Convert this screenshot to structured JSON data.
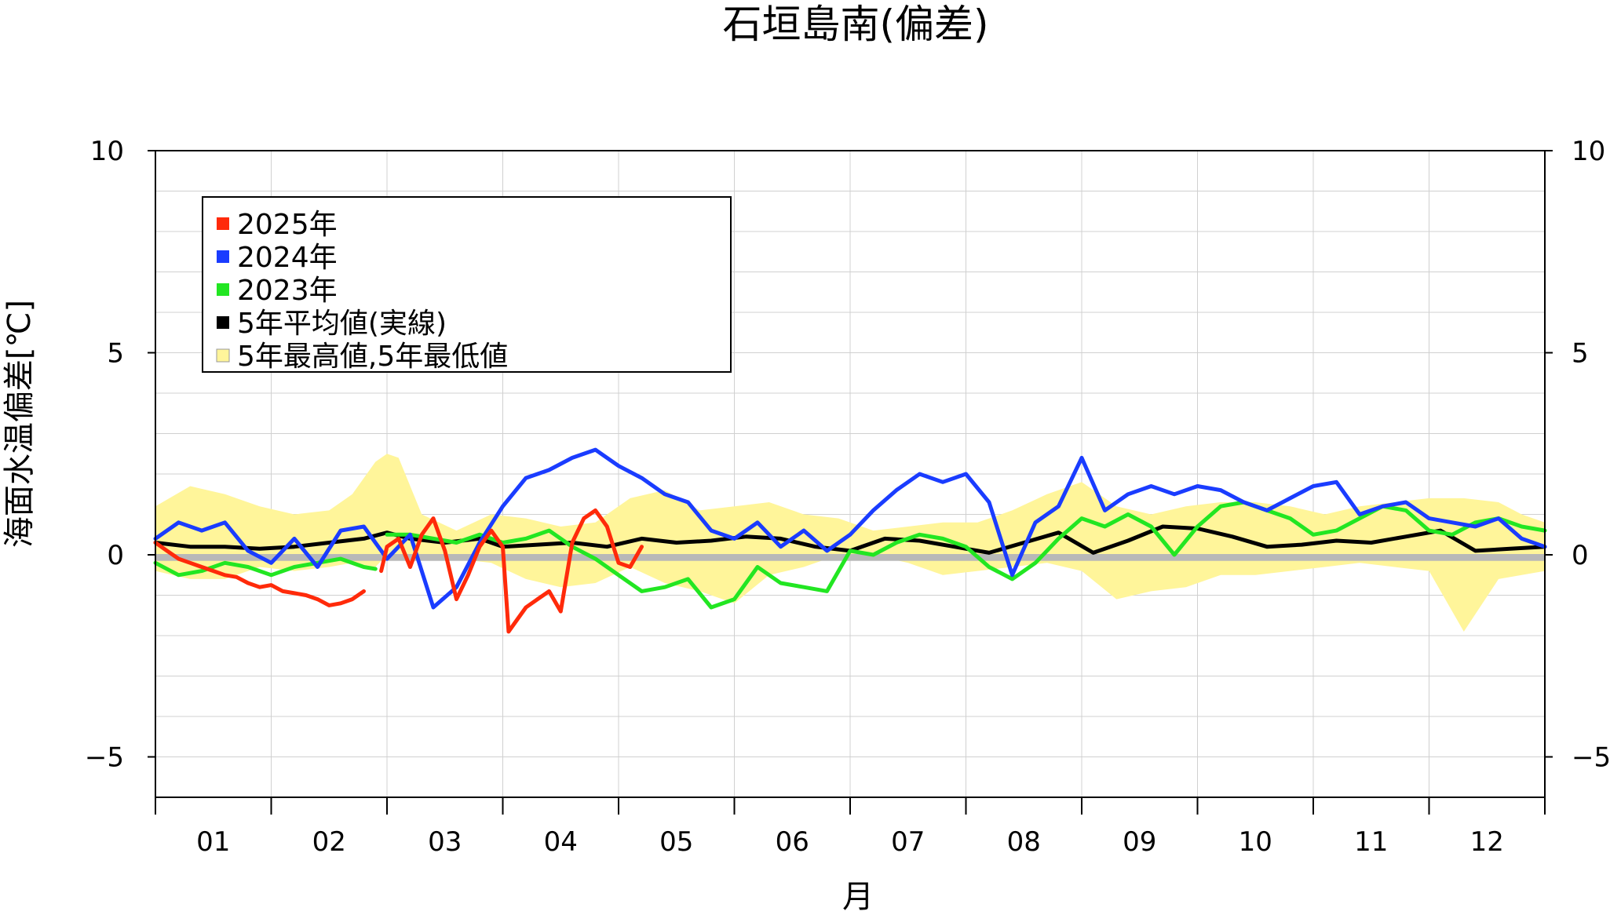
{
  "chart_data": {
    "type": "line",
    "title": "石垣島南(偏差)",
    "xlabel": "月",
    "ylabel": "海面水温偏差[℃]",
    "ylim": [
      -6,
      10
    ],
    "xlim": [
      0,
      12
    ],
    "yticks": [
      10,
      5,
      0,
      -5
    ],
    "ytick_labels": [
      "10",
      "5",
      "0",
      "−5"
    ],
    "categories": [
      "01",
      "02",
      "03",
      "04",
      "05",
      "06",
      "07",
      "08",
      "09",
      "10",
      "11",
      "12"
    ],
    "grid": true,
    "legend_position": "top-left",
    "legend": [
      {
        "label": "2025年",
        "color": "#ff2a0a"
      },
      {
        "label": "2024年",
        "color": "#1a3cff"
      },
      {
        "label": "2023年",
        "color": "#22e622"
      },
      {
        "label": "5年平均値(実線)",
        "color": "#000000"
      },
      {
        "label": "5年最高値,5年最低値",
        "color": "#fff59a"
      }
    ],
    "series": [
      {
        "name": "2025年",
        "color": "#ff2a0a",
        "x": [
          0,
          0.1,
          0.2,
          0.3,
          0.4,
          0.5,
          0.6,
          0.7,
          0.8,
          0.9,
          1.0,
          1.1,
          1.2,
          1.3,
          1.4,
          1.5,
          1.6,
          1.7,
          1.8,
          1.9,
          1.95,
          2.0,
          2.1,
          2.2,
          2.3,
          2.4,
          2.5,
          2.6,
          2.7,
          2.8,
          2.9,
          3.0,
          3.05,
          3.1,
          3.2,
          3.3,
          3.4,
          3.5,
          3.6,
          3.7,
          3.8,
          3.9,
          4.0,
          4.1,
          4.2
        ],
        "y": [
          0.3,
          0.1,
          -0.1,
          -0.2,
          -0.3,
          -0.4,
          -0.5,
          -0.55,
          -0.7,
          -0.8,
          -0.75,
          -0.9,
          -0.95,
          -1.0,
          -1.1,
          -1.25,
          -1.2,
          -1.1,
          -0.9,
          null,
          -0.4,
          0.2,
          0.4,
          -0.3,
          0.5,
          0.9,
          0.1,
          -1.1,
          -0.5,
          0.2,
          0.6,
          0.2,
          -1.9,
          -1.7,
          -1.3,
          -1.1,
          -0.9,
          -1.4,
          0.3,
          0.9,
          1.1,
          0.7,
          -0.2,
          -0.3,
          0.2
        ]
      },
      {
        "name": "2024年",
        "color": "#1a3cff",
        "x": [
          0,
          0.2,
          0.4,
          0.6,
          0.8,
          1.0,
          1.2,
          1.4,
          1.6,
          1.8,
          2.0,
          2.2,
          2.4,
          2.6,
          2.8,
          3.0,
          3.2,
          3.4,
          3.6,
          3.8,
          4.0,
          4.2,
          4.4,
          4.6,
          4.8,
          5.0,
          5.2,
          5.4,
          5.6,
          5.8,
          6.0,
          6.2,
          6.4,
          6.6,
          6.8,
          7.0,
          7.2,
          7.4,
          7.6,
          7.8,
          8.0,
          8.2,
          8.4,
          8.6,
          8.8,
          9.0,
          9.2,
          9.4,
          9.6,
          9.8,
          10.0,
          10.2,
          10.4,
          10.6,
          10.8,
          11.0,
          11.2,
          11.4,
          11.6,
          11.8,
          12.0
        ],
        "y": [
          0.4,
          0.8,
          0.6,
          0.8,
          0.1,
          -0.2,
          0.4,
          -0.3,
          0.6,
          0.7,
          -0.1,
          0.5,
          -1.3,
          -0.8,
          0.3,
          1.2,
          1.9,
          2.1,
          2.4,
          2.6,
          2.2,
          1.9,
          1.5,
          1.3,
          0.6,
          0.4,
          0.8,
          0.2,
          0.6,
          0.1,
          0.5,
          1.1,
          1.6,
          2.0,
          1.8,
          2.0,
          1.3,
          -0.5,
          0.8,
          1.2,
          2.4,
          1.1,
          1.5,
          1.7,
          1.5,
          1.7,
          1.6,
          1.3,
          1.1,
          1.4,
          1.7,
          1.8,
          1.0,
          1.2,
          1.3,
          0.9,
          0.8,
          0.7,
          0.9,
          0.4,
          0.2
        ]
      },
      {
        "name": "2023年",
        "color": "#22e622",
        "x": [
          0,
          0.2,
          0.4,
          0.6,
          0.8,
          1.0,
          1.2,
          1.4,
          1.6,
          1.8,
          1.9
        ],
        "y": [
          -0.2,
          -0.5,
          -0.4,
          -0.2,
          -0.3,
          -0.5,
          -0.3,
          -0.2,
          -0.1,
          -0.3,
          -0.35
        ]
      },
      {
        "name": "2023年",
        "color": "#22e622",
        "x": [
          2.0,
          2.2,
          2.4,
          2.6,
          2.8,
          3.0,
          3.2,
          3.4,
          3.6,
          3.8,
          4.0,
          4.2,
          4.4,
          4.6,
          4.8,
          5.0,
          5.2,
          5.4,
          5.6,
          5.8,
          6.0,
          6.2,
          6.4,
          6.6,
          6.8,
          7.0,
          7.2,
          7.4,
          7.6,
          7.8,
          8.0,
          8.2,
          8.4,
          8.6,
          8.8,
          9.0,
          9.2,
          9.4,
          9.6,
          9.8,
          10.0,
          10.2,
          10.4,
          10.6,
          10.8,
          11.0,
          11.2,
          11.4,
          11.6,
          11.8,
          12.0
        ],
        "y": [
          0.5,
          0.5,
          0.4,
          0.3,
          0.5,
          0.3,
          0.4,
          0.6,
          0.2,
          -0.1,
          -0.5,
          -0.9,
          -0.8,
          -0.6,
          -1.3,
          -1.1,
          -0.3,
          -0.7,
          -0.8,
          -0.9,
          0.1,
          0.0,
          0.3,
          0.5,
          0.4,
          0.2,
          -0.3,
          -0.6,
          -0.2,
          0.4,
          0.9,
          0.7,
          1.0,
          0.7,
          0.0,
          0.7,
          1.2,
          1.3,
          1.1,
          0.9,
          0.5,
          0.6,
          0.9,
          1.2,
          1.1,
          0.6,
          0.5,
          0.8,
          0.9,
          0.7,
          0.6
        ]
      },
      {
        "name": "5年平均値(実線)",
        "color": "#000000",
        "x": [
          0,
          0.3,
          0.6,
          0.9,
          1.2,
          1.5,
          1.8,
          2.0,
          2.2,
          2.5,
          2.8,
          3.0,
          3.3,
          3.6,
          3.9,
          4.2,
          4.5,
          4.8,
          5.1,
          5.4,
          5.7,
          6.0,
          6.3,
          6.6,
          6.9,
          7.2,
          7.5,
          7.8,
          8.1,
          8.4,
          8.7,
          9.0,
          9.3,
          9.6,
          9.9,
          10.2,
          10.5,
          10.8,
          11.1,
          11.4,
          11.7,
          12.0
        ],
        "y": [
          0.3,
          0.2,
          0.2,
          0.15,
          0.2,
          0.3,
          0.4,
          0.55,
          0.4,
          0.3,
          0.4,
          0.2,
          0.25,
          0.3,
          0.2,
          0.4,
          0.3,
          0.35,
          0.45,
          0.4,
          0.2,
          0.1,
          0.4,
          0.35,
          0.2,
          0.05,
          0.3,
          0.55,
          0.05,
          0.35,
          0.7,
          0.65,
          0.45,
          0.2,
          0.25,
          0.35,
          0.3,
          0.45,
          0.6,
          0.1,
          0.15,
          0.2
        ]
      }
    ],
    "band": {
      "name": "5年最高値,5年最低値",
      "color": "#fff59a",
      "x": [
        0,
        0.3,
        0.6,
        0.9,
        1.2,
        1.5,
        1.7,
        1.9,
        2.0,
        2.1,
        2.3,
        2.6,
        2.9,
        3.2,
        3.5,
        3.8,
        4.1,
        4.4,
        4.7,
        5.0,
        5.3,
        5.6,
        5.9,
        6.2,
        6.5,
        6.8,
        7.1,
        7.4,
        7.7,
        8.0,
        8.3,
        8.6,
        8.9,
        9.2,
        9.5,
        9.8,
        10.1,
        10.4,
        10.7,
        11.0,
        11.3,
        11.6,
        11.8,
        12.0
      ],
      "upper": [
        1.2,
        1.7,
        1.5,
        1.2,
        1.0,
        1.1,
        1.5,
        2.3,
        2.5,
        2.4,
        1.0,
        0.6,
        1.0,
        0.9,
        0.7,
        0.8,
        1.4,
        1.6,
        1.1,
        1.2,
        1.3,
        1.0,
        0.9,
        0.6,
        0.7,
        0.8,
        0.8,
        1.1,
        1.5,
        1.8,
        1.2,
        1.0,
        1.2,
        1.3,
        1.3,
        1.2,
        1.0,
        1.2,
        1.3,
        1.4,
        1.4,
        1.3,
        1.0,
        0.8
      ],
      "lower": [
        -0.4,
        -0.6,
        -0.6,
        -0.3,
        -0.4,
        -0.3,
        -0.2,
        -0.3,
        0.0,
        0.0,
        0.0,
        -0.1,
        -0.2,
        -0.6,
        -0.8,
        -0.7,
        -0.3,
        -0.7,
        -0.9,
        -1.2,
        -0.5,
        -0.3,
        0.0,
        0.0,
        -0.2,
        -0.5,
        -0.4,
        -0.3,
        -0.2,
        -0.4,
        -1.1,
        -0.9,
        -0.8,
        -0.5,
        -0.5,
        -0.4,
        -0.3,
        -0.2,
        -0.3,
        -0.4,
        -1.9,
        -0.6,
        -0.5,
        -0.4
      ]
    }
  }
}
